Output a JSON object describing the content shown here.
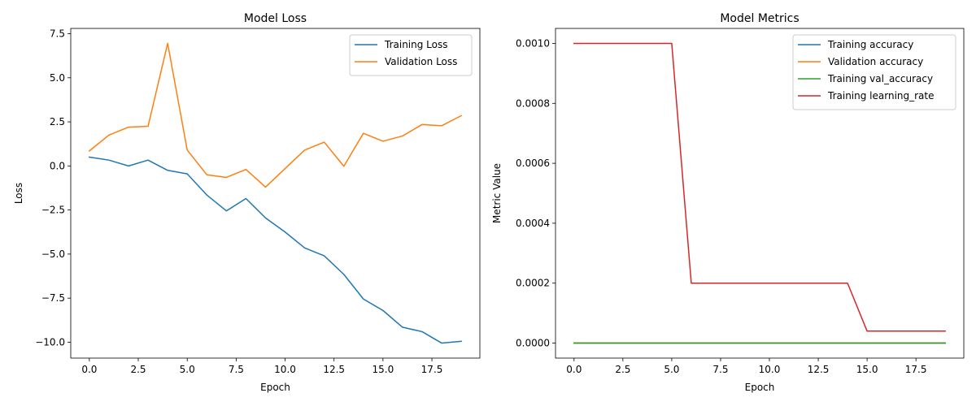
{
  "chart_data": [
    {
      "type": "line",
      "title": "Model Loss",
      "xlabel": "Epoch",
      "ylabel": "Loss",
      "xlim": [
        -0.95,
        19.95
      ],
      "ylim": [
        -10.9,
        7.8
      ],
      "xticks": [
        0,
        2.5,
        5,
        7.5,
        10,
        12.5,
        15,
        17.5
      ],
      "xtick_labels": [
        "0.0",
        "2.5",
        "5.0",
        "7.5",
        "10.0",
        "12.5",
        "15.0",
        "17.5"
      ],
      "yticks": [
        -10,
        -7.5,
        -5,
        -2.5,
        0,
        2.5,
        5,
        7.5
      ],
      "ytick_labels": [
        "−10.0",
        "−7.5",
        "−5.0",
        "−2.5",
        "0.0",
        "2.5",
        "5.0",
        "7.5"
      ],
      "legend_position": "top-right",
      "grid": false,
      "x": [
        0,
        1,
        2,
        3,
        4,
        5,
        6,
        7,
        8,
        9,
        10,
        11,
        12,
        13,
        14,
        15,
        16,
        17,
        18,
        19
      ],
      "series": [
        {
          "name": "Training Loss",
          "color": "#1f77b4",
          "values": [
            0.5,
            0.33,
            0.0,
            0.33,
            -0.25,
            -0.45,
            -1.65,
            -2.55,
            -1.85,
            -2.95,
            -3.75,
            -4.65,
            -5.1,
            -6.15,
            -7.55,
            -8.2,
            -9.15,
            -9.4,
            -10.05,
            -9.95
          ]
        },
        {
          "name": "Validation Loss",
          "color": "#ff7f0e",
          "values": [
            0.85,
            1.75,
            2.2,
            2.25,
            6.95,
            0.9,
            -0.5,
            -0.65,
            -0.2,
            -1.2,
            -0.15,
            0.9,
            1.35,
            -0.02,
            1.85,
            1.4,
            1.7,
            2.35,
            2.28,
            2.85
          ]
        }
      ]
    },
    {
      "type": "line",
      "title": "Model Metrics",
      "xlabel": "Epoch",
      "ylabel": "Metric Value",
      "xlim": [
        -0.95,
        19.95
      ],
      "ylim": [
        -5e-05,
        0.00105
      ],
      "xticks": [
        0,
        2.5,
        5,
        7.5,
        10,
        12.5,
        15,
        17.5
      ],
      "xtick_labels": [
        "0.0",
        "2.5",
        "5.0",
        "7.5",
        "10.0",
        "12.5",
        "15.0",
        "17.5"
      ],
      "yticks": [
        0,
        0.0002,
        0.0004,
        0.0006,
        0.0008,
        0.001
      ],
      "ytick_labels": [
        "0.0000",
        "0.0002",
        "0.0004",
        "0.0006",
        "0.0008",
        "0.0010"
      ],
      "legend_position": "top-right",
      "grid": false,
      "x": [
        0,
        1,
        2,
        3,
        4,
        5,
        6,
        7,
        8,
        9,
        10,
        11,
        12,
        13,
        14,
        15,
        16,
        17,
        18,
        19
      ],
      "series": [
        {
          "name": "Training accuracy",
          "color": "#1f77b4",
          "values": [
            0,
            0,
            0,
            0,
            0,
            0,
            0,
            0,
            0,
            0,
            0,
            0,
            0,
            0,
            0,
            0,
            0,
            0,
            0,
            0
          ]
        },
        {
          "name": "Validation accuracy",
          "color": "#ff7f0e",
          "values": [
            0,
            0,
            0,
            0,
            0,
            0,
            0,
            0,
            0,
            0,
            0,
            0,
            0,
            0,
            0,
            0,
            0,
            0,
            0,
            0
          ]
        },
        {
          "name": "Training val_accuracy",
          "color": "#2ca02c",
          "values": [
            0,
            0,
            0,
            0,
            0,
            0,
            0,
            0,
            0,
            0,
            0,
            0,
            0,
            0,
            0,
            0,
            0,
            0,
            0,
            0
          ]
        },
        {
          "name": "Training learning_rate",
          "color": "#d62728",
          "values": [
            0.001,
            0.001,
            0.001,
            0.001,
            0.001,
            0.001,
            0.0002,
            0.0002,
            0.0002,
            0.0002,
            0.0002,
            0.0002,
            0.0002,
            0.0002,
            0.0002,
            4e-05,
            4e-05,
            4e-05,
            4e-05,
            4e-05
          ]
        }
      ]
    }
  ]
}
